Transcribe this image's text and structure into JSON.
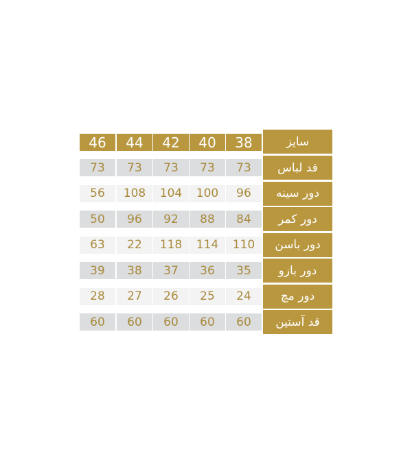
{
  "colors": {
    "gold": "#b8973f",
    "gray": "#dcdddf",
    "light": "#f3f3f3",
    "value_text": "#a98a3c"
  },
  "header": {
    "label": "سایز",
    "sizes": [
      "38",
      "40",
      "42",
      "44",
      "46"
    ]
  },
  "rows": [
    {
      "label": "قد لباس",
      "values": [
        "73",
        "73",
        "73",
        "73",
        "73"
      ]
    },
    {
      "label": "دور سینه",
      "values": [
        "96",
        "100",
        "104",
        "108",
        "56"
      ]
    },
    {
      "label": "دور کمر",
      "values": [
        "84",
        "88",
        "92",
        "96",
        "50"
      ]
    },
    {
      "label": "دور باسن",
      "values": [
        "110",
        "114",
        "118",
        "22",
        "63"
      ]
    },
    {
      "label": "دور بازو",
      "values": [
        "35",
        "36",
        "37",
        "38",
        "39"
      ]
    },
    {
      "label": "دور مچ",
      "values": [
        "24",
        "25",
        "26",
        "27",
        "28"
      ]
    },
    {
      "label": "قد آستین",
      "values": [
        "60",
        "60",
        "60",
        "60",
        "60"
      ]
    }
  ]
}
